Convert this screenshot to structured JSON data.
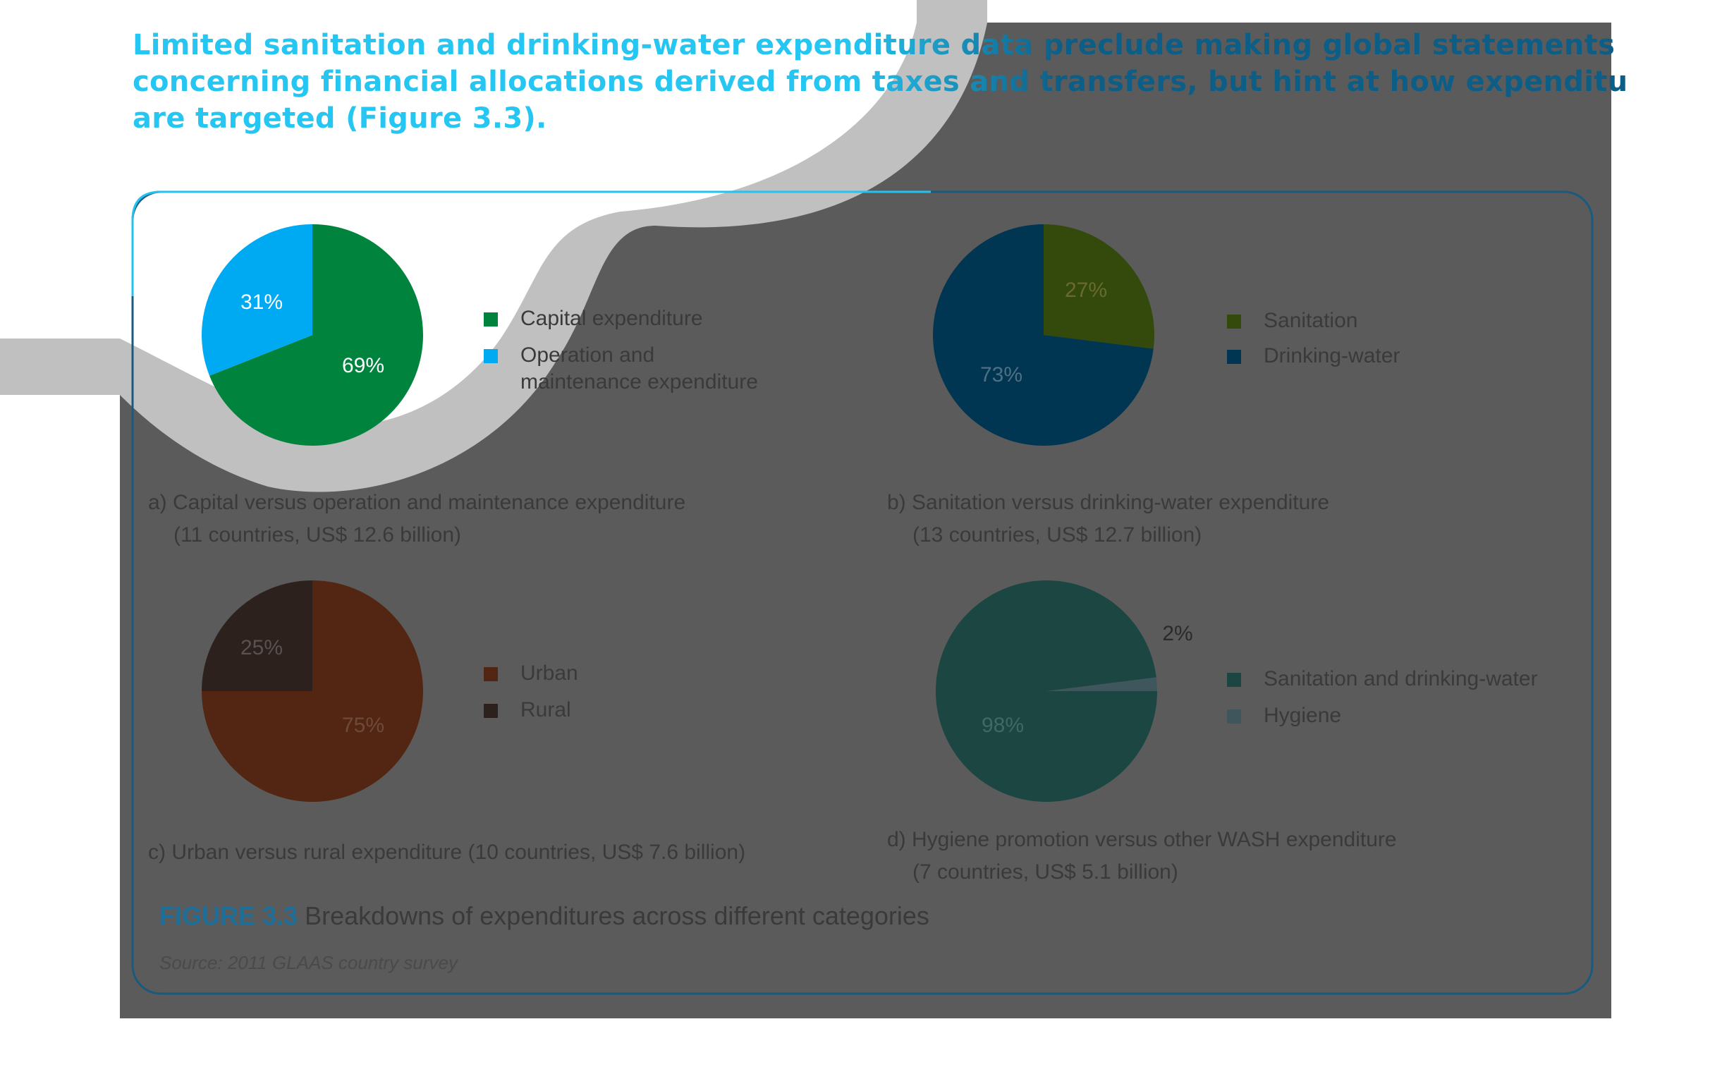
{
  "headline": {
    "lines": [
      "Limited sanitation and drinking-water expenditure data preclude making global statements",
      "concerning financial allocations derived from taxes and transfers, but hint at how expenditures",
      "are targeted (Figure 3.3)."
    ]
  },
  "figure": {
    "number": "FIGURE 3.3",
    "title": "Breakdowns of expenditures across different categories",
    "source": "Source: 2011 GLAAS country survey"
  },
  "chart_data": [
    {
      "type": "pie",
      "id": "a",
      "caption_line1": "a) Capital versus operation and maintenance expenditure",
      "caption_line2": "(11 countries, US$ 12.6 billion)",
      "slices": [
        {
          "label": "Capital expenditure",
          "value": 69,
          "value_label": "69%",
          "color": "#00843d"
        },
        {
          "label": "Operation and maintenance expenditure",
          "value": 31,
          "value_label": "31%",
          "color": "#00aaf2"
        }
      ]
    },
    {
      "type": "pie",
      "id": "b",
      "caption_line1": "b) Sanitation versus drinking-water expenditure",
      "caption_line2": "(13 countries, US$ 12.7 billion)",
      "slices": [
        {
          "label": "Sanitation",
          "value": 27,
          "value_label": "27%",
          "color": "#344a0c"
        },
        {
          "label": "Drinking-water",
          "value": 73,
          "value_label": "73%",
          "color": "#003652"
        }
      ]
    },
    {
      "type": "pie",
      "id": "c",
      "caption_line1": "c) Urban versus rural expenditure (10 countries, US$ 7.6 billion)",
      "caption_line2": "",
      "slices": [
        {
          "label": "Urban",
          "value": 75,
          "value_label": "75%",
          "color": "#522612"
        },
        {
          "label": "Rural",
          "value": 25,
          "value_label": "25%",
          "color": "#2c211d"
        }
      ]
    },
    {
      "type": "pie",
      "id": "d",
      "caption_line1": "d) Hygiene promotion versus other WASH expenditure",
      "caption_line2": "(7 countries, US$ 5.1 billion)",
      "slices": [
        {
          "label": "Sanitation and drinking-water",
          "value": 98,
          "value_label": "98%",
          "color": "#1b4641"
        },
        {
          "label": "Hygiene",
          "value": 2,
          "value_label": "2%",
          "color": "#3f565d"
        }
      ]
    }
  ]
}
